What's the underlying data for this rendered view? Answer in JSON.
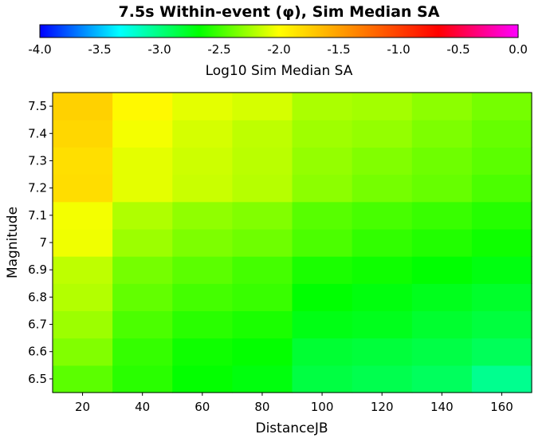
{
  "chart_data": {
    "type": "heatmap",
    "title": "7.5s Within-event (φ), Sim Median SA",
    "xlabel": "DistanceJB",
    "ylabel": "Magnitude",
    "x_ticks": [
      "20",
      "40",
      "60",
      "80",
      "100",
      "120",
      "140",
      "160"
    ],
    "y_ticks": [
      "6.5",
      "6.6",
      "6.7",
      "6.8",
      "6.9",
      "7",
      "7.1",
      "7.2",
      "7.3",
      "7.4",
      "7.5"
    ],
    "x_centers": [
      20,
      40,
      60,
      80,
      100,
      120,
      140,
      160
    ],
    "xlim": [
      10,
      170
    ],
    "ylim": [
      6.45,
      7.55
    ],
    "colorbar": {
      "label": "Log10 Sim Median SA",
      "range": [
        -4.0,
        0.0
      ],
      "tick_labels": [
        "-4.0",
        "-3.5",
        "-3.0",
        "-2.5",
        "-2.0",
        "-1.5",
        "-1.0",
        "-0.5",
        "0.0"
      ],
      "stops": [
        {
          "value": -4.0,
          "color": "#0000ff"
        },
        {
          "value": -3.333,
          "color": "#00ffff"
        },
        {
          "value": -2.667,
          "color": "#00ff00"
        },
        {
          "value": -2.0,
          "color": "#ffff00"
        },
        {
          "value": -1.333,
          "color": "#ff8000"
        },
        {
          "value": -0.667,
          "color": "#ff0000"
        },
        {
          "value": 0.0,
          "color": "#ff00ff"
        }
      ]
    },
    "rows": [
      {
        "magnitude": 6.5,
        "values": [
          -2.43,
          -2.56,
          -2.66,
          -2.7,
          -2.84,
          -2.87,
          -2.91,
          -3.04
        ]
      },
      {
        "magnitude": 6.6,
        "values": [
          -2.33,
          -2.53,
          -2.63,
          -2.66,
          -2.8,
          -2.82,
          -2.85,
          -2.9
        ]
      },
      {
        "magnitude": 6.7,
        "values": [
          -2.26,
          -2.47,
          -2.56,
          -2.6,
          -2.72,
          -2.74,
          -2.79,
          -2.83
        ]
      },
      {
        "magnitude": 6.8,
        "values": [
          -2.2,
          -2.41,
          -2.49,
          -2.52,
          -2.67,
          -2.7,
          -2.74,
          -2.78
        ]
      },
      {
        "magnitude": 6.9,
        "values": [
          -2.17,
          -2.36,
          -2.43,
          -2.49,
          -2.6,
          -2.63,
          -2.67,
          -2.71
        ]
      },
      {
        "magnitude": 7.0,
        "values": [
          -2.04,
          -2.26,
          -2.34,
          -2.38,
          -2.47,
          -2.54,
          -2.58,
          -2.63
        ]
      },
      {
        "magnitude": 7.1,
        "values": [
          -2.03,
          -2.21,
          -2.29,
          -2.33,
          -2.44,
          -2.48,
          -2.52,
          -2.57
        ]
      },
      {
        "magnitude": 7.2,
        "values": [
          -1.82,
          -2.07,
          -2.14,
          -2.19,
          -2.3,
          -2.36,
          -2.4,
          -2.47
        ]
      },
      {
        "magnitude": 7.3,
        "values": [
          -1.83,
          -2.07,
          -2.13,
          -2.18,
          -2.28,
          -2.33,
          -2.38,
          -2.43
        ]
      },
      {
        "magnitude": 7.4,
        "values": [
          -1.79,
          -2.03,
          -2.11,
          -2.17,
          -2.25,
          -2.28,
          -2.34,
          -2.4
        ]
      },
      {
        "magnitude": 7.5,
        "values": [
          -1.76,
          -1.97,
          -2.07,
          -2.11,
          -2.22,
          -2.24,
          -2.3,
          -2.36
        ]
      }
    ]
  }
}
